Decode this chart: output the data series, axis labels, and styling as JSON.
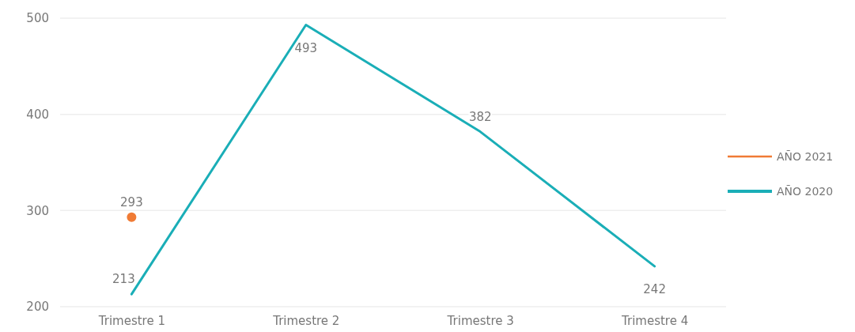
{
  "chart_data": {
    "type": "line",
    "categories": [
      "Trimestre 1",
      "Trimestre 2",
      "Trimestre 3",
      "Trimestre 4"
    ],
    "series": [
      {
        "name": "AÑO 2021",
        "color": "#f07b35",
        "values": [
          293,
          null,
          null,
          null
        ],
        "marker": "circle"
      },
      {
        "name": "AÑO 2020",
        "color": "#1aaeb7",
        "values": [
          213,
          493,
          382,
          242
        ]
      }
    ],
    "ylim": [
      200,
      500
    ],
    "yticks": [
      200,
      300,
      400,
      500
    ],
    "grid": "y",
    "legend": "right",
    "data_labels": true,
    "line_style": "solid"
  }
}
